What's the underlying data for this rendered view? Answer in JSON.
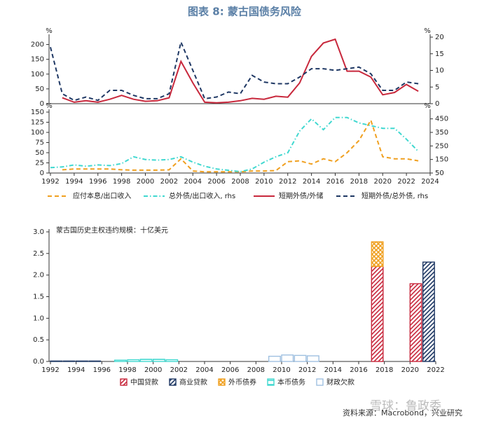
{
  "header": {
    "title": "图表 8: 蒙古国债务风险"
  },
  "chart_data": [
    {
      "type": "line",
      "y_label": "%",
      "y2_label": "%",
      "x": [
        1992,
        1993,
        1994,
        1995,
        1996,
        1997,
        1998,
        1999,
        2000,
        2001,
        2002,
        2003,
        2004,
        2005,
        2006,
        2007,
        2008,
        2009,
        2010,
        2011,
        2012,
        2013,
        2014,
        2015,
        2016,
        2017,
        2018,
        2019,
        2020,
        2021,
        2022,
        2023
      ],
      "xlim": [
        1992,
        2024
      ],
      "ylim": [
        0,
        225
      ],
      "yticks": [
        0,
        50,
        100,
        150,
        200
      ],
      "y2lim": [
        0,
        20
      ],
      "y2ticks": [
        0,
        5,
        10,
        15,
        20
      ],
      "series": [
        {
          "name": "短期外债/外储",
          "color": "#c8283c",
          "dash": "solid",
          "values": [
            null,
            20,
            5,
            10,
            5,
            15,
            28,
            15,
            8,
            10,
            20,
            143,
            70,
            5,
            3,
            5,
            10,
            18,
            15,
            25,
            22,
            70,
            160,
            205,
            218,
            110,
            110,
            90,
            30,
            38,
            65,
            42
          ]
        },
        {
          "name": "短期外债/总外债, rhs",
          "color": "#1f3864",
          "dash": "dashed",
          "axis": "y2",
          "values": [
            17,
            3,
            1,
            2,
            1,
            4,
            4,
            2.5,
            1.5,
            1.5,
            3,
            18.5,
            10,
            1.5,
            2,
            3.5,
            3,
            8.5,
            6.5,
            6,
            6,
            8,
            10.5,
            10.5,
            10,
            10.5,
            11,
            9,
            4,
            4,
            6.5,
            6
          ]
        }
      ]
    },
    {
      "type": "line",
      "y_label": "%",
      "y2_label": "%",
      "x": [
        1992,
        1993,
        1994,
        1995,
        1996,
        1997,
        1998,
        1999,
        2000,
        2001,
        2002,
        2003,
        2004,
        2005,
        2006,
        2007,
        2008,
        2009,
        2010,
        2011,
        2012,
        2013,
        2014,
        2015,
        2016,
        2017,
        2018,
        2019,
        2020,
        2021,
        2022,
        2023
      ],
      "xlim": [
        1992,
        2024
      ],
      "xticks": [
        1992,
        1994,
        1996,
        1998,
        2000,
        2002,
        2004,
        2006,
        2008,
        2010,
        2012,
        2014,
        2016,
        2018,
        2020,
        2022,
        2024
      ],
      "ylim": [
        0,
        150
      ],
      "yticks": [
        0,
        25,
        50,
        75,
        100,
        125,
        150
      ],
      "y2lim": [
        50,
        500
      ],
      "y2ticks": [
        50,
        150,
        250,
        350,
        450
      ],
      "series": [
        {
          "name": "应付本息/出口收入",
          "color": "#f0a020",
          "dash": "dashed",
          "values": [
            null,
            8,
            10,
            10,
            10,
            10,
            8,
            7,
            7,
            7,
            8,
            35,
            5,
            3,
            3,
            3,
            3,
            5,
            5,
            6,
            28,
            30,
            22,
            35,
            28,
            50,
            80,
            130,
            40,
            35,
            35,
            30
          ]
        },
        {
          "name": "总外债/出口收入, rhs",
          "color": "#40d8d0",
          "dash": "dashdot",
          "axis": "y2",
          "values": [
            90,
            95,
            110,
            100,
            110,
            105,
            120,
            170,
            150,
            145,
            150,
            170,
            130,
            100,
            80,
            70,
            60,
            80,
            130,
            170,
            200,
            360,
            450,
            370,
            460,
            460,
            420,
            400,
            380,
            380,
            300,
            210
          ]
        }
      ]
    },
    {
      "type": "stacked_bar",
      "title": "蒙古国历史主权违约规模：十亿美元",
      "x": [
        1992,
        1993,
        1994,
        1995,
        1996,
        1997,
        1998,
        1999,
        2000,
        2001,
        2002,
        2003,
        2004,
        2005,
        2006,
        2007,
        2008,
        2009,
        2010,
        2011,
        2012,
        2013,
        2014,
        2015,
        2016,
        2017,
        2018,
        2019,
        2020,
        2021
      ],
      "xlim": [
        1992,
        2022
      ],
      "xticks": [
        1992,
        1994,
        1996,
        1998,
        2000,
        2002,
        2004,
        2006,
        2008,
        2010,
        2012,
        2014,
        2016,
        2018,
        2020,
        2022
      ],
      "ylim": [
        0,
        3.0
      ],
      "yticks": [
        {
          "value": 0,
          "label": "0.0"
        },
        {
          "value": 0.5,
          "label": "0.5"
        },
        {
          "value": 1,
          "label": "1.0"
        },
        {
          "value": 1.5,
          "label": "1.5"
        },
        {
          "value": 2,
          "label": "2.0"
        },
        {
          "value": 2.5,
          "label": "2.5"
        },
        {
          "value": 3,
          "label": "3.0"
        }
      ],
      "series": [
        {
          "name": "中国贷款",
          "color": "#c8283c",
          "hatch": "/",
          "values": [
            0,
            0,
            0,
            0,
            0,
            0,
            0,
            0,
            0,
            0,
            0,
            0,
            0,
            0,
            0,
            0,
            0,
            0,
            0,
            0,
            0,
            0,
            0,
            0,
            0,
            2.2,
            0,
            0,
            1.8,
            0
          ]
        },
        {
          "name": "商业贷款",
          "color": "#1f3864",
          "hatch": "/",
          "values": [
            0.01,
            0.01,
            0.01,
            0.01,
            0,
            0,
            0,
            0,
            0,
            0,
            0,
            0,
            0,
            0,
            0,
            0,
            0,
            0,
            0,
            0,
            0,
            0,
            0,
            0,
            0,
            0,
            0,
            0,
            0,
            2.3
          ]
        },
        {
          "name": "外币债券",
          "color": "#f0a020",
          "hatch": "x",
          "values": [
            0,
            0,
            0,
            0,
            0,
            0,
            0,
            0,
            0,
            0,
            0,
            0,
            0,
            0,
            0,
            0,
            0,
            0,
            0,
            0,
            0,
            0,
            0,
            0,
            0,
            0.57,
            0,
            0,
            0,
            0
          ]
        },
        {
          "name": "本币债务",
          "color": "#40d8d0",
          "hatch": "-",
          "values": [
            0,
            0,
            0,
            0,
            0,
            0.03,
            0.04,
            0.05,
            0.05,
            0.04,
            0,
            0,
            0,
            0,
            0,
            0,
            0,
            0,
            0,
            0,
            0,
            0,
            0,
            0,
            0,
            0,
            0,
            0,
            0,
            0
          ]
        },
        {
          "name": "财政欠款",
          "color": "#9fc0e0",
          "hatch": "none",
          "values": [
            0,
            0,
            0,
            0,
            0,
            0,
            0,
            0,
            0,
            0,
            0,
            0,
            0,
            0,
            0,
            0,
            0,
            0.12,
            0.15,
            0.14,
            0.13,
            0,
            0,
            0,
            0,
            0,
            0,
            0,
            0,
            0
          ]
        }
      ]
    }
  ],
  "footer": {
    "source": "资料来源：Macrobond，兴业研究",
    "watermark": "雪球：鲁政委"
  }
}
